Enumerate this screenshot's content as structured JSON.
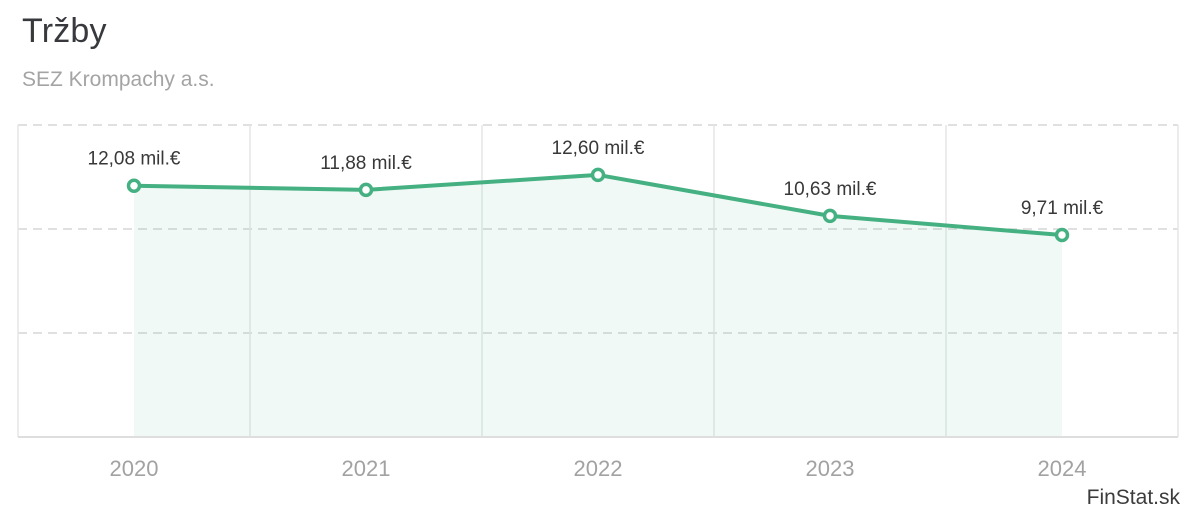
{
  "header": {
    "title": "Tržby",
    "subtitle": "SEZ Krompachy a.s."
  },
  "watermark": "FinStat.sk",
  "colors": {
    "line": "#45b081",
    "area_fill": "rgba(69,176,129,0.08)",
    "marker_fill": "#ffffff",
    "grid_solid": "#e6e6e6",
    "grid_dashed": "#d6d6d6",
    "axis_line": "#dedede",
    "data_label": "#383838",
    "axis_label": "#a2a2a2"
  },
  "chart_data": {
    "type": "area",
    "title": "Tržby",
    "subtitle": "SEZ Krompachy a.s.",
    "categories": [
      "2020",
      "2021",
      "2022",
      "2023",
      "2024"
    ],
    "values": [
      12.08,
      11.88,
      12.6,
      10.63,
      9.71
    ],
    "point_labels": [
      "12,08 mil.€",
      "11,88 mil.€",
      "12,60 mil.€",
      "10,63 mil.€",
      "9,71 mil.€"
    ],
    "unit": "mil.€",
    "xlabel": "",
    "ylabel": "",
    "ylim": [
      0,
      15
    ],
    "grid_step": 5,
    "grid": "on",
    "legend_position": "none"
  }
}
